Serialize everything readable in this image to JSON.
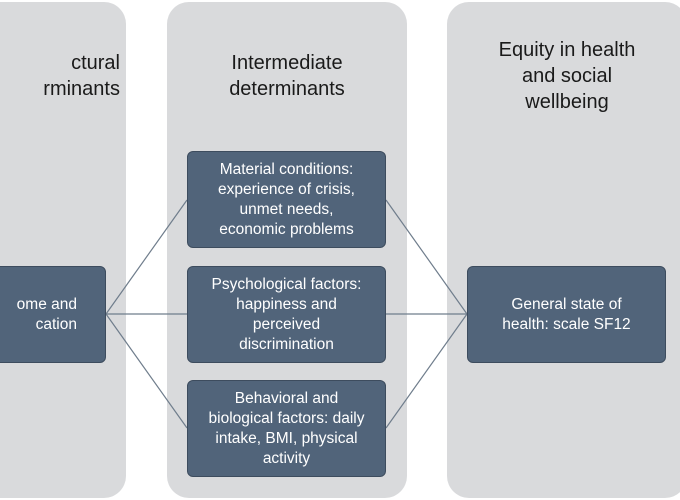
{
  "columns": {
    "structural": {
      "title_lines": [
        "ctural",
        "rminants"
      ]
    },
    "intermediate": {
      "title_lines": [
        "Intermediate",
        "determinants"
      ]
    },
    "equity": {
      "title_lines": [
        "Equity in health",
        "and social",
        "wellbeing"
      ]
    }
  },
  "boxes": {
    "income": {
      "lines": [
        "ome and",
        "cation"
      ]
    },
    "material": {
      "lines": [
        "Material conditions:",
        "experience of crisis,",
        "unmet needs,",
        "economic problems"
      ]
    },
    "psych": {
      "lines": [
        "Psychological factors:",
        "happiness and",
        "perceived",
        "discrimination"
      ]
    },
    "behav": {
      "lines": [
        "Behavioral and",
        "biological factors: daily",
        "intake, BMI, physical",
        "activity"
      ]
    },
    "health": {
      "lines": [
        "General state of",
        "health: scale SF12"
      ]
    }
  },
  "colors": {
    "column_bg": "#d9dadc",
    "box_fill": "#51647a",
    "box_text": "#ffffff",
    "connector": "#6f7d8c"
  }
}
